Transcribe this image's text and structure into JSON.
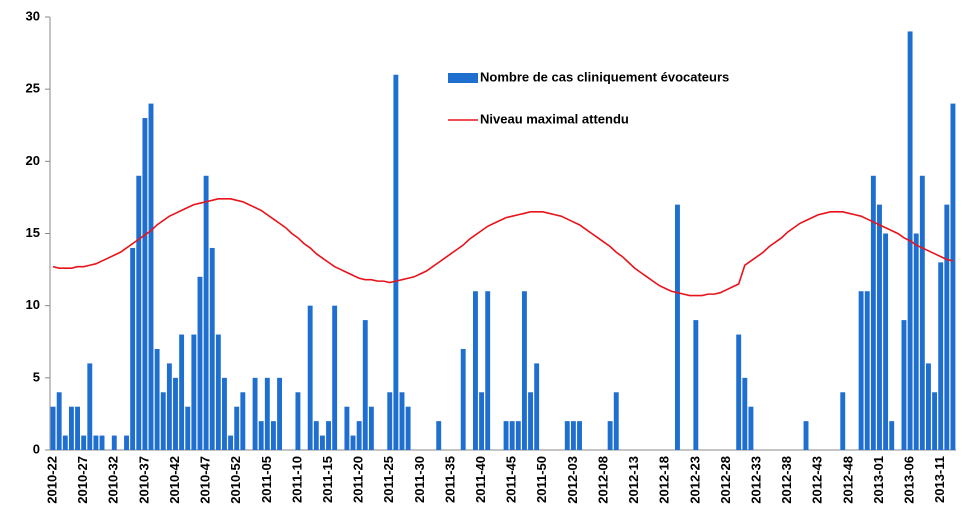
{
  "chart_data": {
    "type": "bar",
    "categories": [
      "2010-22",
      null,
      null,
      null,
      null,
      "2010-27",
      null,
      null,
      null,
      null,
      "2010-32",
      null,
      null,
      null,
      null,
      "2010-37",
      null,
      null,
      null,
      null,
      "2010-42",
      null,
      null,
      null,
      null,
      "2010-47",
      null,
      null,
      null,
      null,
      "2010-52",
      null,
      null,
      null,
      null,
      "2011-05",
      null,
      null,
      null,
      null,
      "2011-10",
      null,
      null,
      null,
      null,
      "2011-15",
      null,
      null,
      null,
      null,
      "2011-20",
      null,
      null,
      null,
      null,
      "2011-25",
      null,
      null,
      null,
      null,
      "2011-30",
      null,
      null,
      null,
      null,
      "2011-35",
      null,
      null,
      null,
      null,
      "2011-40",
      null,
      null,
      null,
      null,
      "2011-45",
      null,
      null,
      null,
      null,
      "2011-50",
      null,
      null,
      null,
      null,
      "2012-03",
      null,
      null,
      null,
      null,
      "2012-08",
      null,
      null,
      null,
      null,
      "2012-13",
      null,
      null,
      null,
      null,
      "2012-18",
      null,
      null,
      null,
      null,
      "2012-23",
      null,
      null,
      null,
      null,
      "2012-28",
      null,
      null,
      null,
      null,
      "2012-33",
      null,
      null,
      null,
      null,
      "2012-38",
      null,
      null,
      null,
      null,
      "2012-43",
      null,
      null,
      null,
      null,
      "2012-48",
      null,
      null,
      null,
      null,
      "2013-01",
      null,
      null,
      null,
      null,
      "2013-06",
      null,
      null,
      null,
      null,
      "2013-11",
      null,
      null
    ],
    "series": [
      {
        "name": "Nombre de cas cliniquement évocateurs",
        "type": "bar",
        "color": "#1f6fd1",
        "values": [
          3,
          4,
          1,
          3,
          3,
          1,
          6,
          1,
          1,
          0,
          1,
          0,
          1,
          14,
          19,
          23,
          24,
          7,
          4,
          6,
          5,
          8,
          3,
          8,
          12,
          19,
          14,
          8,
          5,
          1,
          3,
          4,
          0,
          5,
          2,
          5,
          2,
          5,
          0,
          0,
          4,
          0,
          10,
          2,
          1,
          2,
          10,
          0,
          3,
          1,
          2,
          9,
          3,
          0,
          0,
          4,
          26,
          4,
          3,
          0,
          0,
          0,
          0,
          2,
          0,
          0,
          0,
          7,
          0,
          11,
          4,
          11,
          0,
          0,
          2,
          2,
          2,
          11,
          4,
          6,
          0,
          0,
          0,
          0,
          2,
          2,
          2,
          0,
          0,
          0,
          0,
          2,
          4,
          0,
          0,
          0,
          0,
          0,
          0,
          0,
          0,
          0,
          17,
          0,
          0,
          9,
          0,
          0,
          0,
          0,
          0,
          0,
          8,
          5,
          3,
          0,
          0,
          0,
          0,
          0,
          0,
          0,
          0,
          2,
          0,
          0,
          0,
          0,
          0,
          4,
          0,
          0,
          11,
          11,
          19,
          17,
          15,
          2,
          0,
          9,
          29,
          15,
          19,
          6,
          4,
          13,
          17,
          24
        ]
      },
      {
        "name": "Niveau maximal attendu",
        "type": "line",
        "color": "#e8141b",
        "values": [
          12.7,
          12.6,
          12.6,
          12.6,
          12.7,
          12.7,
          12.8,
          12.9,
          13.1,
          13.3,
          13.5,
          13.7,
          14.0,
          14.3,
          14.6,
          14.9,
          15.2,
          15.6,
          15.9,
          16.2,
          16.4,
          16.6,
          16.8,
          17.0,
          17.1,
          17.2,
          17.3,
          17.4,
          17.4,
          17.4,
          17.3,
          17.2,
          17.0,
          16.8,
          16.6,
          16.3,
          16.0,
          15.7,
          15.4,
          15.0,
          14.7,
          14.3,
          14.0,
          13.6,
          13.3,
          13.0,
          12.7,
          12.5,
          12.3,
          12.1,
          11.9,
          11.8,
          11.8,
          11.7,
          11.7,
          11.6,
          11.7,
          11.8,
          11.9,
          12.0,
          12.2,
          12.4,
          12.7,
          13.0,
          13.3,
          13.6,
          13.9,
          14.2,
          14.6,
          14.9,
          15.2,
          15.5,
          15.7,
          15.9,
          16.1,
          16.2,
          16.3,
          16.4,
          16.5,
          16.5,
          16.5,
          16.4,
          16.3,
          16.2,
          16.0,
          15.8,
          15.6,
          15.3,
          15.0,
          14.7,
          14.4,
          14.1,
          13.7,
          13.4,
          13.0,
          12.6,
          12.3,
          12.0,
          11.7,
          11.4,
          11.2,
          11.0,
          10.9,
          10.8,
          10.7,
          10.7,
          10.7,
          10.8,
          10.8,
          10.9,
          11.1,
          11.3,
          11.5,
          12.8,
          13.1,
          13.4,
          13.7,
          14.1,
          14.4,
          14.7,
          15.1,
          15.4,
          15.7,
          15.9,
          16.1,
          16.3,
          16.4,
          16.5,
          16.5,
          16.5,
          16.4,
          16.3,
          16.2,
          16.0,
          15.8,
          15.6,
          15.4,
          15.2,
          15.0,
          14.7,
          14.5,
          14.2,
          14.0,
          13.8,
          13.6,
          13.4,
          13.2,
          13.1
        ]
      }
    ],
    "ylim": [
      0,
      30
    ],
    "yticks": [
      0,
      5,
      10,
      15,
      20,
      25,
      30
    ],
    "grid": false,
    "legend": "top-right"
  }
}
